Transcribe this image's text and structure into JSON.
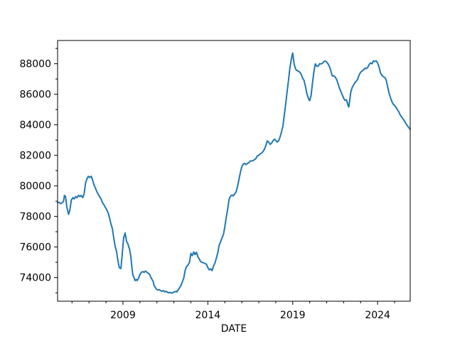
{
  "figure": {
    "background": "#ffffff",
    "spine_color": "#000000",
    "tick_color": "#000000"
  },
  "chart_data": {
    "type": "line",
    "title": "",
    "xlabel": "DATE",
    "ylabel": "",
    "grid": false,
    "legend": null,
    "xlim": [
      2005.15,
      2025.92
    ],
    "ylim": [
      72450,
      89520
    ],
    "x_ticks_major": [
      2009,
      2014,
      2019,
      2024
    ],
    "x_tick_labels": [
      "2009",
      "2014",
      "2019",
      "2024"
    ],
    "x_ticks_minor": [
      2006,
      2007,
      2008,
      2010,
      2011,
      2012,
      2013,
      2015,
      2016,
      2017,
      2018,
      2020,
      2021,
      2022,
      2023,
      2025
    ],
    "y_ticks_major": [
      74000,
      76000,
      78000,
      80000,
      82000,
      84000,
      86000,
      88000
    ],
    "y_tick_labels": [
      "74000",
      "76000",
      "78000",
      "80000",
      "82000",
      "84000",
      "86000",
      "88000"
    ],
    "y_ticks_minor": [
      73000,
      75000,
      77000,
      79000,
      81000,
      83000,
      85000,
      87000,
      89000
    ],
    "series": [
      {
        "name": "series-0",
        "color": "#1f77b4",
        "line_width": 2,
        "x": [
          2005.15,
          2005.25,
          2005.33,
          2005.42,
          2005.5,
          2005.55,
          2005.62,
          2005.7,
          2005.8,
          2005.88,
          2005.96,
          2006.05,
          2006.13,
          2006.21,
          2006.29,
          2006.38,
          2006.46,
          2006.54,
          2006.63,
          2006.71,
          2006.79,
          2006.88,
          2006.96,
          2007.04,
          2007.13,
          2007.21,
          2007.29,
          2007.38,
          2007.46,
          2007.54,
          2007.63,
          2007.71,
          2007.79,
          2007.88,
          2007.96,
          2008.04,
          2008.13,
          2008.21,
          2008.29,
          2008.38,
          2008.46,
          2008.54,
          2008.63,
          2008.71,
          2008.79,
          2008.88,
          2008.96,
          2009.04,
          2009.13,
          2009.21,
          2009.29,
          2009.33,
          2009.38,
          2009.42,
          2009.46,
          2009.5,
          2009.54,
          2009.58,
          2009.67,
          2009.71,
          2009.79,
          2009.83,
          2009.92,
          2009.96,
          2010.08,
          2010.17,
          2010.25,
          2010.33,
          2010.42,
          2010.5,
          2010.58,
          2010.63,
          2010.71,
          2010.79,
          2010.83,
          2010.92,
          2010.96,
          2011.04,
          2011.13,
          2011.21,
          2011.29,
          2011.38,
          2011.46,
          2011.54,
          2011.63,
          2011.71,
          2011.75,
          2011.83,
          2011.88,
          2011.96,
          2012.04,
          2012.13,
          2012.17,
          2012.25,
          2012.33,
          2012.42,
          2012.5,
          2012.58,
          2012.67,
          2012.75,
          2012.83,
          2012.92,
          2013.0,
          2013.08,
          2013.17,
          2013.25,
          2013.33,
          2013.42,
          2013.5,
          2013.58,
          2013.67,
          2013.75,
          2013.83,
          2013.92,
          2014.0,
          2014.08,
          2014.17,
          2014.25,
          2014.33,
          2014.42,
          2014.5,
          2014.58,
          2014.67,
          2014.75,
          2014.83,
          2014.92,
          2015.0,
          2015.08,
          2015.17,
          2015.25,
          2015.33,
          2015.42,
          2015.5,
          2015.58,
          2015.67,
          2015.75,
          2015.83,
          2015.92,
          2016.0,
          2016.08,
          2016.17,
          2016.25,
          2016.33,
          2016.42,
          2016.5,
          2016.58,
          2016.67,
          2016.75,
          2016.83,
          2016.92,
          2017.0,
          2017.08,
          2017.17,
          2017.25,
          2017.33,
          2017.42,
          2017.5,
          2017.58,
          2017.67,
          2017.75,
          2017.83,
          2017.92,
          2018.0,
          2018.08,
          2018.17,
          2018.25,
          2018.33,
          2018.42,
          2018.5,
          2018.58,
          2018.67,
          2018.75,
          2018.83,
          2018.92,
          2019.0,
          2019.08,
          2019.17,
          2019.25,
          2019.33,
          2019.42,
          2019.5,
          2019.58,
          2019.67,
          2019.75,
          2019.83,
          2019.92,
          2020.0,
          2020.08,
          2020.17,
          2020.25,
          2020.33,
          2020.42,
          2020.5,
          2020.58,
          2020.67,
          2020.75,
          2020.83,
          2020.92,
          2021.0,
          2021.08,
          2021.17,
          2021.25,
          2021.33,
          2021.42,
          2021.5,
          2021.58,
          2021.67,
          2021.75,
          2021.83,
          2021.92,
          2022.0,
          2022.08,
          2022.17,
          2022.25,
          2022.3,
          2022.42,
          2022.5,
          2022.58,
          2022.67,
          2022.75,
          2022.83,
          2022.92,
          2023.0,
          2023.08,
          2023.17,
          2023.25,
          2023.33,
          2023.42,
          2023.5,
          2023.58,
          2023.67,
          2023.75,
          2023.83,
          2023.92,
          2024.0,
          2024.08,
          2024.17,
          2024.25,
          2024.33,
          2024.42,
          2024.5,
          2024.58,
          2024.67,
          2024.75,
          2024.83,
          2024.92,
          2025.0,
          2025.08,
          2025.17,
          2025.25,
          2025.33,
          2025.42,
          2025.5,
          2025.58,
          2025.67,
          2025.75,
          2025.83,
          2025.92
        ],
        "y": [
          78900,
          78920,
          78840,
          78890,
          79000,
          79380,
          79300,
          78600,
          78140,
          78450,
          79070,
          79230,
          79150,
          79300,
          79230,
          79380,
          79300,
          79380,
          79230,
          79460,
          80160,
          80470,
          80625,
          80550,
          80630,
          80400,
          80080,
          79850,
          79620,
          79460,
          79300,
          79150,
          78920,
          78760,
          78600,
          78450,
          78220,
          77900,
          77520,
          77200,
          76590,
          76040,
          75660,
          75060,
          74640,
          74590,
          75570,
          76590,
          76915,
          76360,
          76220,
          76040,
          75900,
          75660,
          75430,
          74960,
          74580,
          74190,
          73950,
          73800,
          73880,
          73800,
          73950,
          74110,
          74340,
          74390,
          74340,
          74420,
          74340,
          74270,
          74190,
          74030,
          73880,
          73720,
          73490,
          73330,
          73260,
          73180,
          73210,
          73150,
          73100,
          73150,
          73060,
          73100,
          73030,
          73000,
          73030,
          73000,
          72980,
          73030,
          73060,
          73100,
          73060,
          73180,
          73330,
          73490,
          73720,
          73950,
          74500,
          74730,
          74810,
          75010,
          75580,
          75430,
          75680,
          75500,
          75660,
          75350,
          75200,
          75040,
          74990,
          74960,
          74920,
          74880,
          74650,
          74500,
          74570,
          74450,
          74730,
          74960,
          75270,
          75600,
          76120,
          76350,
          76590,
          76820,
          77300,
          77900,
          78500,
          79100,
          79330,
          79400,
          79350,
          79480,
          79620,
          79950,
          80400,
          80900,
          81250,
          81420,
          81480,
          81400,
          81480,
          81520,
          81630,
          81630,
          81660,
          81720,
          81790,
          81970,
          82000,
          82090,
          82150,
          82250,
          82400,
          82640,
          82950,
          82870,
          82720,
          82790,
          82950,
          83060,
          82990,
          82870,
          82950,
          83180,
          83490,
          83900,
          84600,
          85300,
          86200,
          86900,
          87700,
          88300,
          88700,
          87990,
          87650,
          87550,
          87520,
          87440,
          87300,
          87060,
          86900,
          86500,
          86050,
          85740,
          85580,
          85900,
          86800,
          87500,
          87990,
          87830,
          87830,
          88000,
          87990,
          88020,
          88140,
          88170,
          88110,
          87990,
          87800,
          87500,
          87200,
          87210,
          87130,
          86980,
          86700,
          86400,
          86200,
          85950,
          85740,
          85600,
          85630,
          85300,
          85160,
          86130,
          86430,
          86590,
          86780,
          86860,
          87000,
          87290,
          87440,
          87520,
          87600,
          87700,
          87680,
          87760,
          87940,
          88050,
          88000,
          88180,
          88150,
          88190,
          88050,
          87800,
          87400,
          87250,
          87150,
          87100,
          86950,
          86550,
          86100,
          85800,
          85550,
          85350,
          85270,
          85150,
          84980,
          84850,
          84650,
          84500,
          84380,
          84250,
          84080,
          83950,
          83820,
          83700
        ]
      }
    ]
  }
}
